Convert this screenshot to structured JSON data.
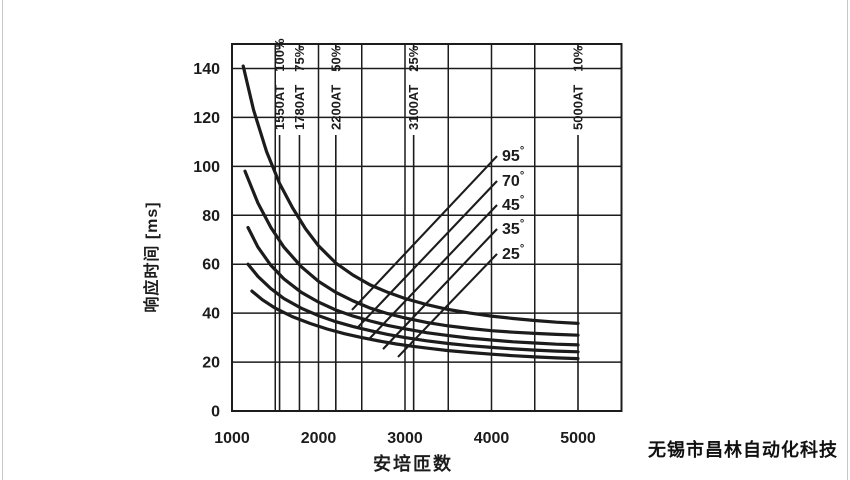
{
  "page": {
    "watermark": "无锡市昌林自动化科技"
  },
  "colors": {
    "ink": "#1c1c1c",
    "background": "#ffffff"
  },
  "chart_data": {
    "type": "line",
    "title": "",
    "xlabel": "安培匝数",
    "ylabel": "响应时间 [ms]",
    "xlim": [
      1000,
      5500
    ],
    "ylim": [
      0,
      150
    ],
    "grid": "on",
    "legend_position": "none",
    "x_ticks": [
      1000,
      2000,
      3000,
      4000,
      5000
    ],
    "y_ticks": [
      0,
      20,
      40,
      60,
      80,
      100,
      120,
      140
    ],
    "x_gridlines": [
      1500,
      2000,
      2500,
      3000,
      3500,
      4000,
      4500
    ],
    "y_gridlines": [
      20,
      40,
      60,
      80,
      100,
      120,
      140
    ],
    "duty_markers": [
      {
        "at": 1550,
        "at_label": "1550AT",
        "pct_label": "100%"
      },
      {
        "at": 1780,
        "at_label": "1780AT",
        "pct_label": "75%"
      },
      {
        "at": 2200,
        "at_label": "2200AT",
        "pct_label": "50%"
      },
      {
        "at": 3100,
        "at_label": "3100AT",
        "pct_label": "25%"
      },
      {
        "at": 5000,
        "at_label": "5000AT",
        "pct_label": "10%"
      }
    ],
    "series": [
      {
        "name": "95",
        "unit": "°",
        "points": [
          [
            1130,
            141
          ],
          [
            1250,
            123
          ],
          [
            1400,
            106
          ],
          [
            1550,
            93
          ],
          [
            1700,
            83
          ],
          [
            1850,
            74.5
          ],
          [
            2000,
            67.5
          ],
          [
            2200,
            60.5
          ],
          [
            2400,
            55.5
          ],
          [
            2600,
            51.5
          ],
          [
            2800,
            48.5
          ],
          [
            3000,
            46
          ],
          [
            3250,
            43.5
          ],
          [
            3500,
            41.5
          ],
          [
            3750,
            40
          ],
          [
            4000,
            38.8
          ],
          [
            4250,
            37.8
          ],
          [
            4500,
            37
          ],
          [
            4750,
            36.3
          ],
          [
            5000,
            35.8
          ]
        ],
        "leader": {
          "from": [
            4064,
            104.2
          ],
          "to": [
            2387,
            41.3
          ]
        }
      },
      {
        "name": "70",
        "unit": "°",
        "points": [
          [
            1150,
            98
          ],
          [
            1300,
            85
          ],
          [
            1450,
            75
          ],
          [
            1600,
            67
          ],
          [
            1800,
            59
          ],
          [
            2000,
            53
          ],
          [
            2200,
            48.5
          ],
          [
            2400,
            45
          ],
          [
            2600,
            42
          ],
          [
            2800,
            39.8
          ],
          [
            3000,
            38
          ],
          [
            3250,
            36.2
          ],
          [
            3500,
            34.8
          ],
          [
            3750,
            33.7
          ],
          [
            4000,
            32.8
          ],
          [
            4250,
            32.2
          ],
          [
            4500,
            31.7
          ],
          [
            4750,
            31.3
          ],
          [
            5000,
            31
          ]
        ],
        "leader": {
          "from": [
            4064,
            94.0
          ],
          "to": [
            2457,
            34.3
          ]
        }
      },
      {
        "name": "45",
        "unit": "°",
        "points": [
          [
            1185,
            75
          ],
          [
            1300,
            67
          ],
          [
            1450,
            59.5
          ],
          [
            1600,
            54
          ],
          [
            1800,
            48.5
          ],
          [
            2000,
            44.5
          ],
          [
            2200,
            41.3
          ],
          [
            2400,
            38.8
          ],
          [
            2600,
            36.8
          ],
          [
            2800,
            35
          ],
          [
            3000,
            33.6
          ],
          [
            3250,
            32
          ],
          [
            3500,
            30.8
          ],
          [
            3750,
            29.8
          ],
          [
            4000,
            29
          ],
          [
            4250,
            28.3
          ],
          [
            4500,
            27.8
          ],
          [
            4750,
            27.3
          ],
          [
            5000,
            27
          ]
        ],
        "leader": {
          "from": [
            4064,
            84.2
          ],
          "to": [
            2595,
            29.8
          ]
        }
      },
      {
        "name": "35",
        "unit": "°",
        "points": [
          [
            1185,
            60
          ],
          [
            1300,
            55
          ],
          [
            1450,
            50
          ],
          [
            1600,
            46
          ],
          [
            1800,
            42
          ],
          [
            2000,
            39
          ],
          [
            2200,
            36.5
          ],
          [
            2400,
            34.5
          ],
          [
            2600,
            32.8
          ],
          [
            2800,
            31.3
          ],
          [
            3000,
            30
          ],
          [
            3250,
            28.7
          ],
          [
            3500,
            27.6
          ],
          [
            3750,
            26.7
          ],
          [
            4000,
            26
          ],
          [
            4250,
            25.4
          ],
          [
            4500,
            24.9
          ],
          [
            4750,
            24.5
          ],
          [
            5000,
            24.2
          ]
        ],
        "leader": {
          "from": [
            4064,
            74.4
          ],
          "to": [
            2746,
            25.3
          ]
        }
      },
      {
        "name": "25",
        "unit": "°",
        "points": [
          [
            1230,
            49
          ],
          [
            1350,
            45.5
          ],
          [
            1500,
            42
          ],
          [
            1700,
            38.5
          ],
          [
            1900,
            35.8
          ],
          [
            2100,
            33.5
          ],
          [
            2300,
            31.6
          ],
          [
            2500,
            30
          ],
          [
            2700,
            28.6
          ],
          [
            2900,
            27.4
          ],
          [
            3100,
            26.4
          ],
          [
            3300,
            25.5
          ],
          [
            3500,
            24.7
          ],
          [
            3750,
            23.9
          ],
          [
            4000,
            23.2
          ],
          [
            4250,
            22.6
          ],
          [
            4500,
            22.1
          ],
          [
            4750,
            21.7
          ],
          [
            5000,
            21.4
          ]
        ],
        "leader": {
          "from": [
            4064,
            64.2
          ],
          "to": [
            2919,
            22.1
          ]
        }
      }
    ]
  }
}
